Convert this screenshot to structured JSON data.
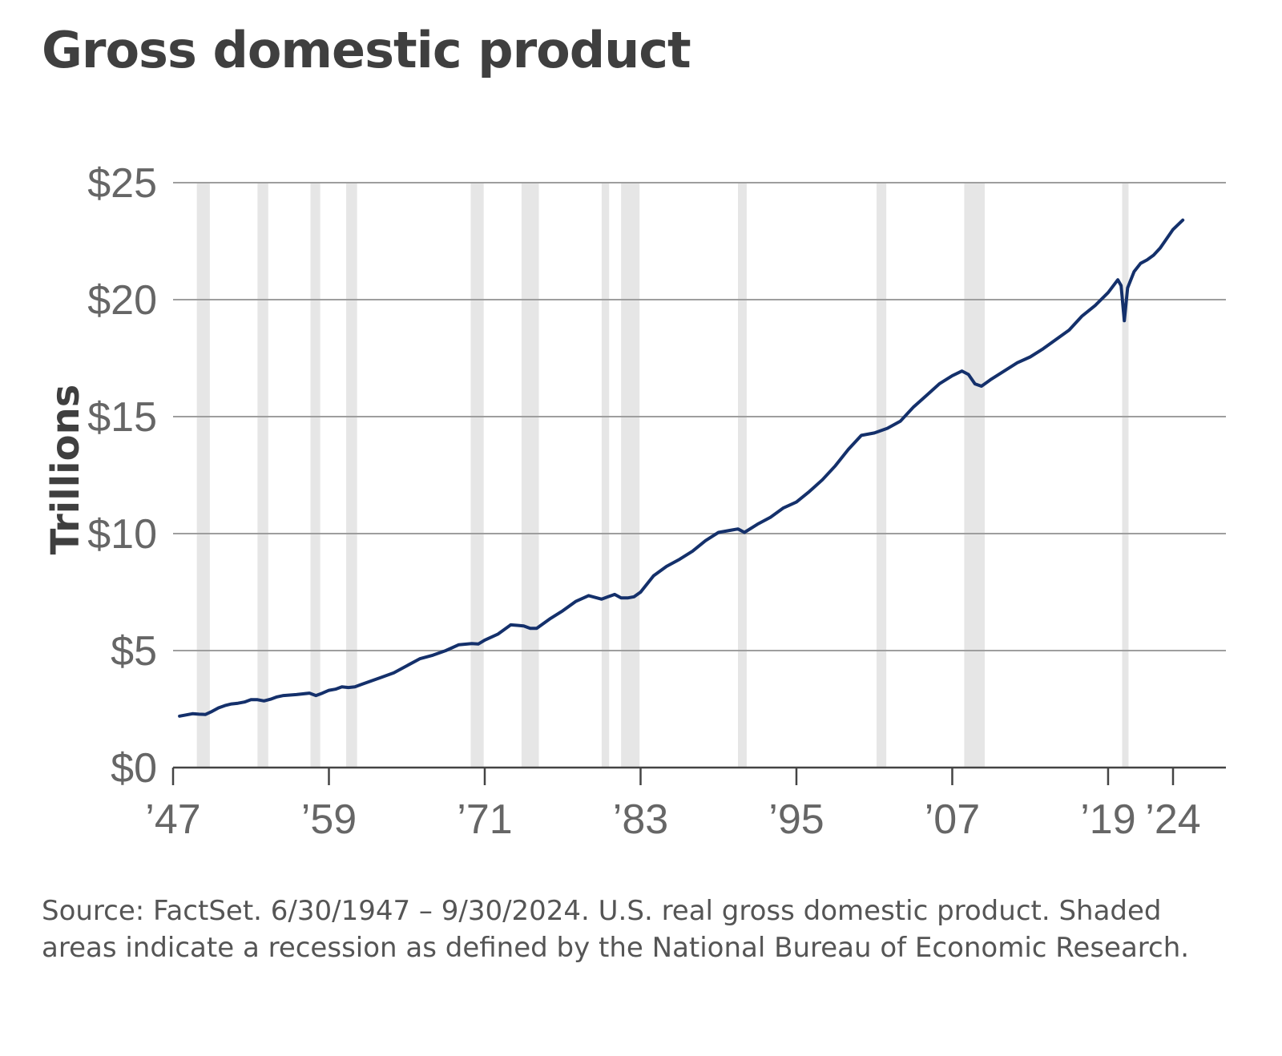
{
  "colors": {
    "line": "#14306b",
    "recession": "#e6e6e6",
    "grid": "#9e9e9e",
    "axis": "#444444"
  },
  "chart_data": {
    "type": "line",
    "title": "Gross domestic product",
    "ylabel": "Trillions",
    "xlabel": "",
    "ylim": [
      0,
      25
    ],
    "xlim": [
      1947,
      2024.75
    ],
    "yticks": [
      {
        "value": 0,
        "label": "$0"
      },
      {
        "value": 5,
        "label": "$5"
      },
      {
        "value": 10,
        "label": "$10"
      },
      {
        "value": 15,
        "label": "$15"
      },
      {
        "value": 20,
        "label": "$20"
      },
      {
        "value": 25,
        "label": "$25"
      }
    ],
    "xticks": [
      {
        "value": 1947,
        "label": "’47"
      },
      {
        "value": 1959,
        "label": "’59"
      },
      {
        "value": 1971,
        "label": "’71"
      },
      {
        "value": 1983,
        "label": "’83"
      },
      {
        "value": 1995,
        "label": "’95"
      },
      {
        "value": 2007,
        "label": "’07"
      },
      {
        "value": 2019,
        "label": "’19"
      },
      {
        "value": 2024,
        "label": "’24"
      }
    ],
    "grid": true,
    "series": [
      {
        "x": [
          1947.5,
          1948.0,
          1948.5,
          1949.0,
          1949.5,
          1950.0,
          1950.5,
          1951.0,
          1951.5,
          1952.0,
          1952.5,
          1953.0,
          1953.5,
          1954.0,
          1954.5,
          1955.0,
          1955.5,
          1956.0,
          1956.5,
          1957.0,
          1957.5,
          1958.0,
          1958.5,
          1959.0,
          1959.5,
          1960.0,
          1960.5,
          1961.0,
          1961.5,
          1962.0,
          1963.0,
          1964.0,
          1965.0,
          1966.0,
          1967.0,
          1968.0,
          1969.0,
          1970.0,
          1970.5,
          1971.0,
          1972.0,
          1973.0,
          1973.5,
          1974.0,
          1974.5,
          1975.0,
          1976.0,
          1977.0,
          1978.0,
          1979.0,
          1980.0,
          1980.5,
          1981.0,
          1981.5,
          1982.0,
          1982.5,
          1983.0,
          1984.0,
          1985.0,
          1986.0,
          1987.0,
          1988.0,
          1989.0,
          1990.0,
          1990.5,
          1991.0,
          1992.0,
          1993.0,
          1994.0,
          1995.0,
          1996.0,
          1997.0,
          1998.0,
          1999.0,
          2000.0,
          2001.0,
          2002.0,
          2003.0,
          2004.0,
          2005.0,
          2006.0,
          2007.0,
          2007.75,
          2008.25,
          2008.75,
          2009.25,
          2009.75,
          2010.0,
          2011.0,
          2012.0,
          2013.0,
          2014.0,
          2015.0,
          2016.0,
          2017.0,
          2018.0,
          2019.0,
          2019.75,
          2020.0,
          2020.25,
          2020.5,
          2021.0,
          2021.5,
          2022.0,
          2022.5,
          2023.0,
          2023.5,
          2024.0,
          2024.75
        ],
        "values": [
          2.2,
          2.25,
          2.3,
          2.28,
          2.27,
          2.4,
          2.55,
          2.65,
          2.72,
          2.75,
          2.8,
          2.9,
          2.9,
          2.85,
          2.92,
          3.02,
          3.08,
          3.1,
          3.12,
          3.15,
          3.18,
          3.08,
          3.18,
          3.3,
          3.35,
          3.45,
          3.42,
          3.45,
          3.55,
          3.65,
          3.85,
          4.05,
          4.35,
          4.65,
          4.8,
          5.0,
          5.25,
          5.3,
          5.28,
          5.45,
          5.7,
          6.1,
          6.08,
          6.05,
          5.95,
          5.95,
          6.35,
          6.7,
          7.1,
          7.35,
          7.2,
          7.3,
          7.4,
          7.25,
          7.25,
          7.3,
          7.5,
          8.2,
          8.6,
          8.9,
          9.25,
          9.7,
          10.05,
          10.15,
          10.2,
          10.05,
          10.4,
          10.7,
          11.1,
          11.35,
          11.8,
          12.3,
          12.9,
          13.6,
          14.2,
          14.3,
          14.5,
          14.8,
          15.4,
          15.9,
          16.4,
          16.75,
          16.95,
          16.8,
          16.4,
          16.3,
          16.5,
          16.6,
          16.95,
          17.3,
          17.55,
          17.9,
          18.3,
          18.7,
          19.3,
          19.75,
          20.3,
          20.85,
          20.6,
          19.1,
          20.5,
          21.2,
          21.55,
          21.7,
          21.9,
          22.2,
          22.6,
          23.0,
          23.4
        ],
        "color": "#14306b"
      }
    ],
    "shaded_regions": [
      [
        1948.83,
        1949.83
      ],
      [
        1953.5,
        1954.33
      ],
      [
        1957.58,
        1958.33
      ],
      [
        1960.33,
        1961.17
      ],
      [
        1969.92,
        1970.92
      ],
      [
        1973.83,
        1975.17
      ],
      [
        1980.0,
        1980.58
      ],
      [
        1981.5,
        1982.92
      ],
      [
        1990.5,
        1991.17
      ],
      [
        2001.17,
        2001.92
      ],
      [
        2007.92,
        2009.5
      ],
      [
        2020.08,
        2020.42
      ]
    ]
  },
  "source_note": "Source: FactSet. 6/30/1947 – 9/30/2024. U.S. real gross domestic product. Shaded areas indicate a recession as defined by the National Bureau of Economic Research."
}
